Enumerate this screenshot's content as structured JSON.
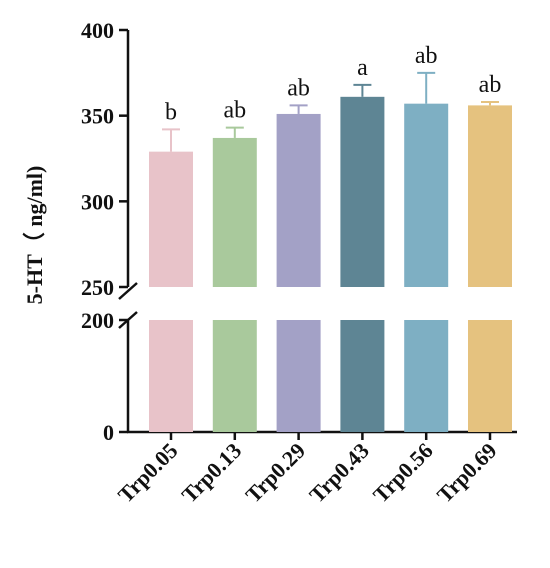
{
  "chart_data": {
    "type": "bar",
    "ylabel": "5-HT（ ng/ml)",
    "categories": [
      "Trp0.05",
      "Trp0.13",
      "Trp0.29",
      "Trp0.43",
      "Trp0.56",
      "Trp0.69"
    ],
    "values": [
      329,
      337,
      351,
      361,
      357,
      356
    ],
    "errors": [
      13,
      6,
      5,
      7,
      18,
      2
    ],
    "significance": [
      "b",
      "ab",
      "ab",
      "a",
      "ab",
      "ab"
    ],
    "colors": [
      "#e8c3c9",
      "#a9c99c",
      "#a3a1c6",
      "#5e8594",
      "#7eafc3",
      "#e5c27f"
    ],
    "y_axis_break": {
      "lower_range": [
        0,
        200
      ],
      "upper_range": [
        250,
        400
      ]
    },
    "yticks_lower": [
      "0",
      "200"
    ],
    "yticks_upper": [
      "250",
      "300",
      "350",
      "400"
    ],
    "grid": false,
    "legend": "none"
  }
}
